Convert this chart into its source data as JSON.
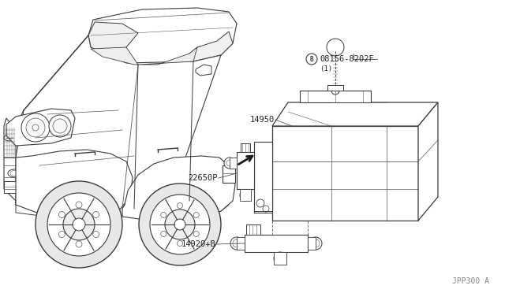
{
  "bg_color": "#ffffff",
  "line_color": "#3a3a3a",
  "thin_color": "#555555",
  "diagram_number": "JPP300 A",
  "parts": {
    "bolt": {
      "label": "08156-8202F",
      "circle_label": "B",
      "sub": "(1)"
    },
    "canister": {
      "label": "14950"
    },
    "purge": {
      "label": "22650P"
    },
    "vent": {
      "label": "14920+B"
    }
  },
  "figsize": [
    6.4,
    3.72
  ],
  "dpi": 100
}
